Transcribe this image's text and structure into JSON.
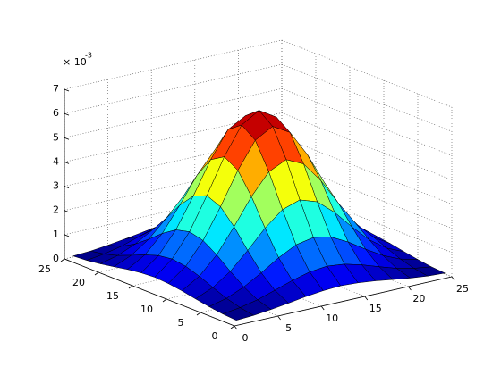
{
  "chart_data": {
    "type": "surface",
    "x": [
      1,
      3,
      5,
      7,
      9,
      11,
      13,
      15,
      17,
      19,
      21,
      23,
      25
    ],
    "y": [
      1,
      3,
      5,
      7,
      9,
      11,
      13,
      15,
      17,
      19,
      21,
      23,
      25
    ],
    "z": [
      [
        0.04,
        0.08,
        0.16,
        0.26,
        0.37,
        0.45,
        0.49,
        0.45,
        0.37,
        0.26,
        0.16,
        0.08,
        0.04
      ],
      [
        0.08,
        0.18,
        0.34,
        0.57,
        0.81,
        1.0,
        1.08,
        1.0,
        0.81,
        0.57,
        0.34,
        0.18,
        0.08
      ],
      [
        0.16,
        0.34,
        0.65,
        1.07,
        1.53,
        1.9,
        2.04,
        1.9,
        1.53,
        1.07,
        0.65,
        0.34,
        0.16
      ],
      [
        0.26,
        0.57,
        1.07,
        1.77,
        2.53,
        3.13,
        3.37,
        3.13,
        2.53,
        1.77,
        1.07,
        0.57,
        0.26
      ],
      [
        0.37,
        0.81,
        1.53,
        2.53,
        3.61,
        4.47,
        4.81,
        4.47,
        3.61,
        2.53,
        1.53,
        0.81,
        0.37
      ],
      [
        0.45,
        1.0,
        1.9,
        3.13,
        4.47,
        5.55,
        5.96,
        5.55,
        4.47,
        3.13,
        1.9,
        1.0,
        0.45
      ],
      [
        0.49,
        1.08,
        2.04,
        3.37,
        4.81,
        5.96,
        6.4,
        5.96,
        4.81,
        3.37,
        2.04,
        1.08,
        0.49
      ],
      [
        0.45,
        1.0,
        1.9,
        3.13,
        4.47,
        5.55,
        5.96,
        5.55,
        4.47,
        3.13,
        1.9,
        1.0,
        0.45
      ],
      [
        0.37,
        0.81,
        1.53,
        2.53,
        3.61,
        4.47,
        4.81,
        4.47,
        3.61,
        2.53,
        1.53,
        0.81,
        0.37
      ],
      [
        0.26,
        0.57,
        1.07,
        1.77,
        2.53,
        3.13,
        3.37,
        3.13,
        2.53,
        1.77,
        1.07,
        0.57,
        0.26
      ],
      [
        0.16,
        0.34,
        0.65,
        1.07,
        1.53,
        1.9,
        2.04,
        1.9,
        1.53,
        1.07,
        0.65,
        0.34,
        0.16
      ],
      [
        0.08,
        0.18,
        0.34,
        0.57,
        0.81,
        1.0,
        1.08,
        1.0,
        0.81,
        0.57,
        0.34,
        0.18,
        0.08
      ],
      [
        0.04,
        0.08,
        0.16,
        0.26,
        0.37,
        0.45,
        0.49,
        0.45,
        0.37,
        0.26,
        0.16,
        0.08,
        0.04
      ]
    ],
    "xlim": [
      0,
      25
    ],
    "ylim": [
      0,
      25
    ],
    "zlim": [
      0,
      7
    ],
    "xticks": [
      0,
      5,
      10,
      15,
      20,
      25
    ],
    "yticks": [
      0,
      5,
      10,
      15,
      20,
      25
    ],
    "zticks": [
      0,
      1,
      2,
      3,
      4,
      5,
      6,
      7
    ],
    "z_multiplier": {
      "base": "× 10",
      "exponent": "-3"
    },
    "colormap": "jet",
    "grid": true,
    "edge_color": "#000000"
  }
}
